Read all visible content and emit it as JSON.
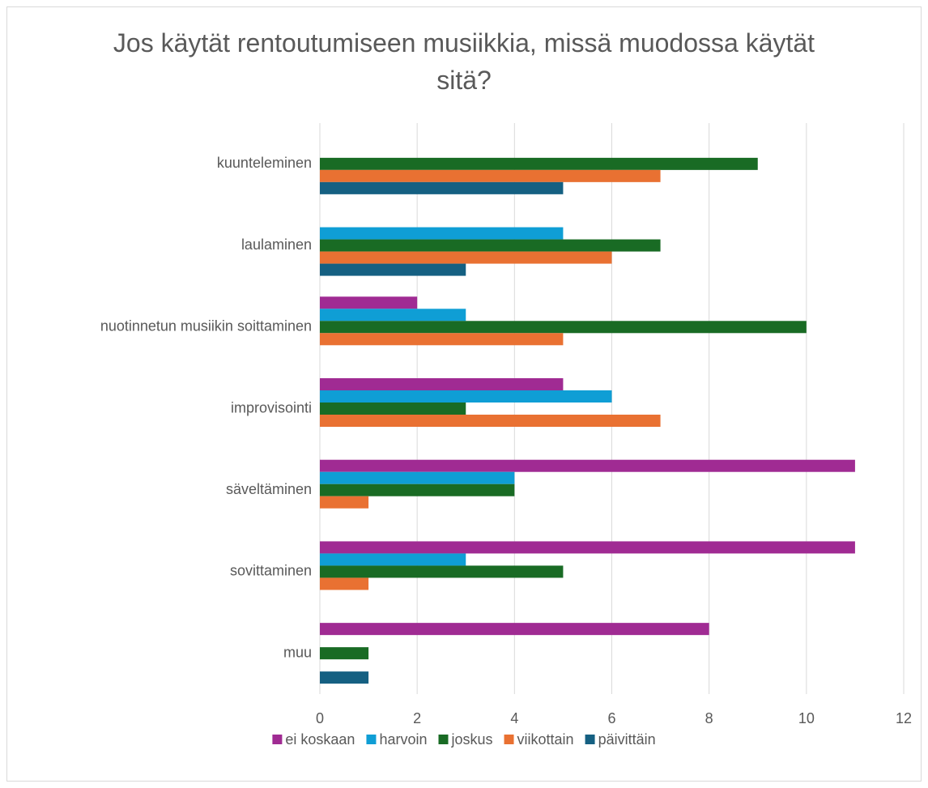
{
  "chart_data": {
    "type": "barh",
    "title": "Jos käytät rentoutumiseen musiikkia, missä muodossa käytät sitä?",
    "categories": [
      "kuunteleminen",
      "laulaminen",
      "nuotinnetun musiikin soittaminen",
      "improvisointi",
      "säveltäminen",
      "sovittaminen",
      "muu"
    ],
    "series": [
      {
        "name": "ei koskaan",
        "color": "#A02B93",
        "values": [
          0,
          0,
          2,
          5,
          11,
          11,
          8
        ]
      },
      {
        "name": "harvoin",
        "color": "#0F9ED5",
        "values": [
          0,
          5,
          3,
          6,
          4,
          3,
          0
        ]
      },
      {
        "name": "joskus",
        "color": "#196B24",
        "values": [
          9,
          7,
          10,
          3,
          4,
          5,
          1
        ]
      },
      {
        "name": "viikottain",
        "color": "#E97132",
        "values": [
          7,
          6,
          5,
          7,
          1,
          1,
          0
        ]
      },
      {
        "name": "päivittäin",
        "color": "#156082",
        "values": [
          5,
          3,
          0,
          0,
          0,
          0,
          1
        ]
      }
    ],
    "xlim": [
      0,
      12
    ],
    "xticks": [
      0,
      2,
      4,
      6,
      8,
      10,
      12
    ],
    "grid": true,
    "legend": "bottom"
  }
}
